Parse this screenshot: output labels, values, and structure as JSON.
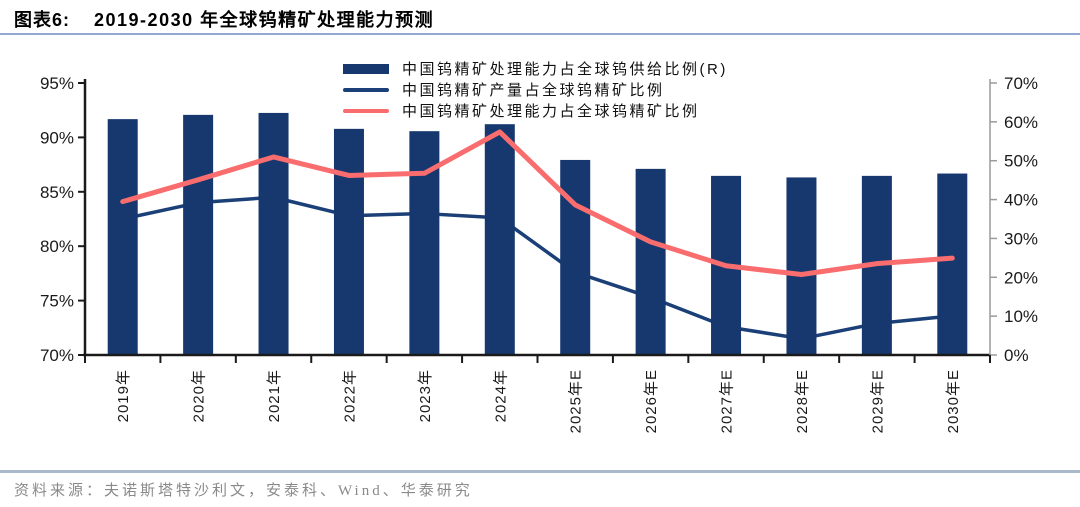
{
  "header": {
    "figure_label": "图表6:",
    "title": "2019-2030 年全球钨精矿处理能力预测"
  },
  "footer": {
    "source": "资料来源：夫诺斯塔特沙利文，安泰科、Wind、华泰研究"
  },
  "colors": {
    "bar_navy": "#16386E",
    "line_navy": "#1B3F77",
    "line_pink": "#FA6D6E",
    "axis_black": "#1A1A1A",
    "axis_gray": "#9A9A9A",
    "title_rule_blue": "#8FA9D0",
    "footer_rule_gray": "#ABBACB",
    "source_gray": "#8A8A8A"
  },
  "chart_data": {
    "type": "combo",
    "title": "2019-2030 年全球钨精矿处理能力预测",
    "categories": [
      "2019年",
      "2020年",
      "2021年",
      "2022年",
      "2023年",
      "2024年",
      "2025年E",
      "2026年E",
      "2027年E",
      "2028年E",
      "2029年E",
      "2030年E"
    ],
    "series": [
      {
        "name": "中国钨精矿处理能力占全球钨供给比例(R)",
        "type": "bar",
        "axis": "right",
        "color": "#16386E",
        "values": [
          60.7,
          61.8,
          62.3,
          58.2,
          57.6,
          59.4,
          50.2,
          47.9,
          46.1,
          45.7,
          46.1,
          46.7
        ]
      },
      {
        "name": "中国钨精矿产量占全球钨精矿比例",
        "type": "line",
        "axis": "left",
        "color": "#1B3F77",
        "values": [
          82.5,
          84.0,
          84.5,
          82.8,
          83.0,
          82.6,
          77.6,
          75.3,
          72.6,
          71.5,
          72.9,
          73.6
        ]
      },
      {
        "name": "中国钨精矿处理能力占全球钨精矿比例",
        "type": "line",
        "axis": "left",
        "color": "#FA6D6E",
        "values": [
          84.1,
          86.1,
          88.2,
          86.5,
          86.7,
          90.5,
          83.8,
          80.4,
          78.2,
          77.4,
          78.4,
          78.9
        ]
      }
    ],
    "left_axis": {
      "min": 70,
      "max": 95,
      "ticks": [
        "70%",
        "75%",
        "80%",
        "85%",
        "90%",
        "95%"
      ]
    },
    "right_axis": {
      "min": 0,
      "max": 70,
      "ticks": [
        "0%",
        "10%",
        "20%",
        "30%",
        "40%",
        "50%",
        "60%",
        "70%"
      ]
    },
    "grid": false,
    "legend_position": "top-center"
  }
}
